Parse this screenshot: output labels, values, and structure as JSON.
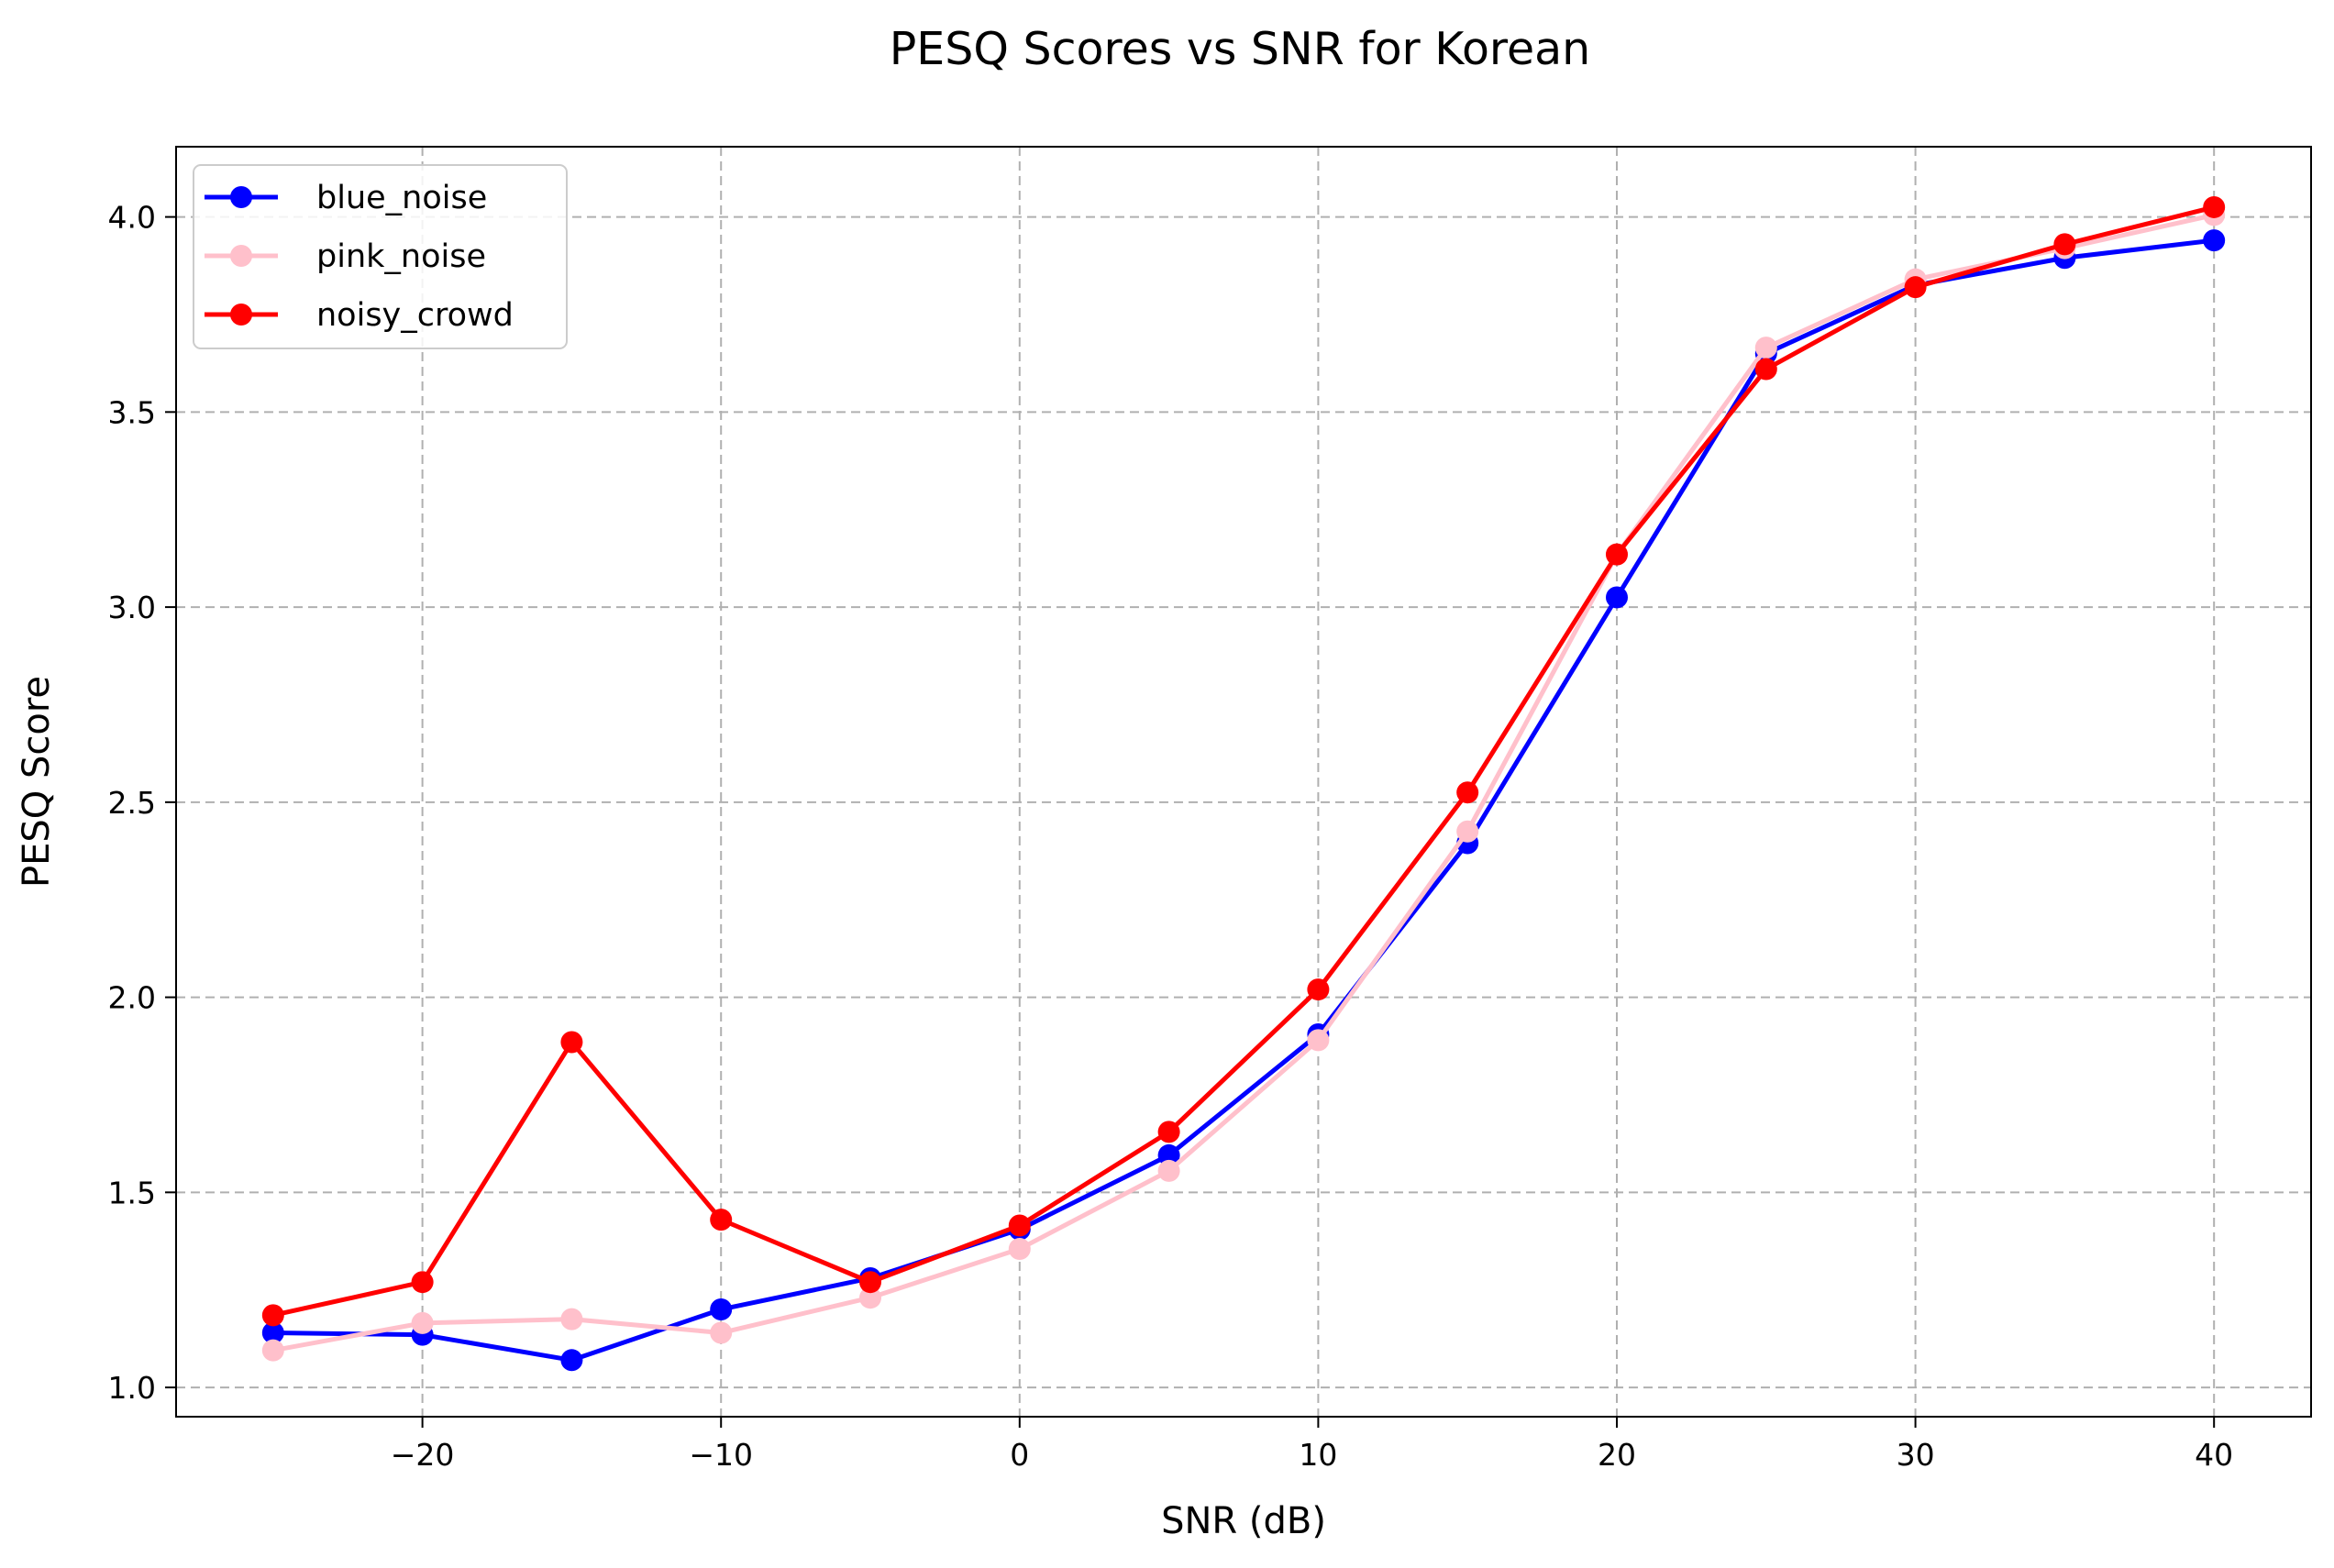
{
  "chart_data": {
    "type": "line",
    "title": "PESQ Scores vs SNR for Korean",
    "xlabel": "SNR (dB)",
    "ylabel": "PESQ Score",
    "x": [
      -25,
      -20,
      -15,
      -10,
      -5,
      0,
      5,
      10,
      15,
      20,
      25,
      30,
      35,
      40
    ],
    "xlim": [
      -28.25,
      43.25
    ],
    "ylim": [
      0.925,
      4.18
    ],
    "xticks": [
      -20,
      -10,
      0,
      10,
      20,
      30,
      40
    ],
    "xtick_labels": [
      "−20",
      "−10",
      "0",
      "10",
      "20",
      "30",
      "40"
    ],
    "yticks": [
      1.0,
      1.5,
      2.0,
      2.5,
      3.0,
      3.5,
      4.0
    ],
    "ytick_labels": [
      "1.0",
      "1.5",
      "2.0",
      "2.5",
      "3.0",
      "3.5",
      "4.0"
    ],
    "grid": true,
    "legend_position": "upper-left",
    "series": [
      {
        "name": "blue_noise",
        "color": "#0000ff",
        "values": [
          1.14,
          1.135,
          1.07,
          1.2,
          1.28,
          1.405,
          1.595,
          1.905,
          2.395,
          3.025,
          3.65,
          3.825,
          3.895,
          3.94
        ]
      },
      {
        "name": "pink_noise",
        "color": "#ffc0cb",
        "values": [
          1.095,
          1.165,
          1.175,
          1.14,
          1.23,
          1.355,
          1.555,
          1.89,
          2.425,
          3.135,
          3.665,
          3.84,
          3.92,
          4.005
        ]
      },
      {
        "name": "noisy_crowd",
        "color": "#ff0000",
        "values": [
          1.185,
          1.27,
          1.885,
          1.43,
          1.27,
          1.415,
          1.655,
          2.02,
          2.525,
          3.135,
          3.61,
          3.82,
          3.93,
          4.025
        ]
      }
    ]
  }
}
